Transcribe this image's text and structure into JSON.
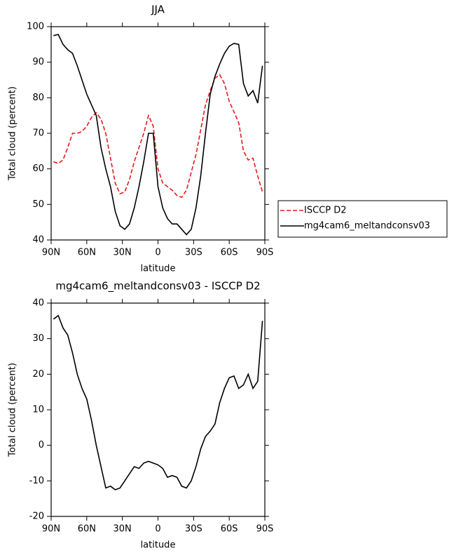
{
  "chart_data": [
    {
      "type": "line",
      "title": "JJA",
      "xlabel": "latitude",
      "ylabel": "Total cloud (percent)",
      "x": [
        88,
        84,
        80,
        76,
        72,
        68,
        64,
        60,
        56,
        52,
        48,
        44,
        40,
        36,
        32,
        28,
        24,
        20,
        16,
        12,
        8,
        4,
        0,
        -4,
        -8,
        -12,
        -16,
        -20,
        -24,
        -28,
        -32,
        -36,
        -40,
        -44,
        -48,
        -52,
        -56,
        -60,
        -64,
        -68,
        -72,
        -76,
        -80,
        -84,
        -88
      ],
      "xlim": [
        90,
        -90
      ],
      "xticks": [
        {
          "value": 90,
          "label": "90N"
        },
        {
          "value": 60,
          "label": "60N"
        },
        {
          "value": 30,
          "label": "30N"
        },
        0,
        {
          "value": -30,
          "label": "30S"
        },
        {
          "value": -60,
          "label": "60S"
        },
        {
          "value": -90,
          "label": "90S"
        }
      ],
      "ylim": [
        40,
        100
      ],
      "yticks": [
        40,
        50,
        60,
        70,
        80,
        90,
        100
      ],
      "legend": "right",
      "series": [
        {
          "name": "ISCCP D2",
          "color": "#e41a1c",
          "dashed": true,
          "values": [
            62,
            61.5,
            62.5,
            66,
            70,
            70,
            70.5,
            72,
            74.5,
            75.8,
            74,
            70,
            63,
            56,
            53,
            53.5,
            57,
            62,
            66,
            70,
            75,
            72,
            60,
            56,
            55,
            54,
            52.5,
            52,
            54,
            59,
            64,
            71,
            78,
            82,
            85.5,
            86.5,
            84,
            79,
            76,
            73,
            65,
            62.5,
            63,
            58,
            53.5
          ]
        },
        {
          "name": "mg4cam6_meltandconsv03",
          "color": "#000000",
          "dashed": false,
          "values": [
            97.5,
            97.8,
            95,
            93.5,
            92.5,
            89,
            85,
            81,
            78,
            75,
            66,
            60,
            55,
            48,
            44,
            43,
            44.5,
            49,
            55,
            62,
            70,
            70,
            55,
            49,
            46,
            44.5,
            44.5,
            43,
            41.5,
            43,
            49,
            58,
            70,
            81,
            86,
            89.5,
            92.5,
            94.5,
            95.3,
            95,
            84,
            80.5,
            82,
            78.5,
            89
          ]
        }
      ]
    },
    {
      "type": "line",
      "title": "mg4cam6_meltandconsv03 - ISCCP D2",
      "xlabel": "latitude",
      "ylabel": "Total cloud (percent)",
      "x": [
        88,
        84,
        80,
        76,
        72,
        68,
        64,
        60,
        56,
        52,
        48,
        44,
        40,
        36,
        32,
        28,
        24,
        20,
        16,
        12,
        8,
        4,
        0,
        -4,
        -8,
        -12,
        -16,
        -20,
        -24,
        -28,
        -32,
        -36,
        -40,
        -44,
        -48,
        -52,
        -56,
        -60,
        -64,
        -68,
        -72,
        -76,
        -80,
        -84,
        -88
      ],
      "xlim": [
        90,
        -90
      ],
      "xticks": [
        {
          "value": 90,
          "label": "90N"
        },
        {
          "value": 60,
          "label": "60N"
        },
        {
          "value": 30,
          "label": "30N"
        },
        0,
        {
          "value": -30,
          "label": "30S"
        },
        {
          "value": -60,
          "label": "60S"
        },
        {
          "value": -90,
          "label": "90S"
        }
      ],
      "ylim": [
        -20,
        40
      ],
      "yticks": [
        -20,
        -10,
        0,
        10,
        20,
        30,
        40
      ],
      "series": [
        {
          "color": "#000000",
          "dashed": false,
          "values": [
            35.5,
            36.5,
            33,
            31,
            26,
            20,
            16,
            13,
            7,
            0,
            -6,
            -12,
            -11.5,
            -12.5,
            -12,
            -10,
            -8,
            -6,
            -6.5,
            -5,
            -4.5,
            -5,
            -5.5,
            -6.5,
            -9,
            -8.5,
            -9,
            -11.5,
            -12,
            -10,
            -6,
            -1,
            2.5,
            4,
            6,
            12,
            16,
            19,
            19.5,
            16,
            17,
            20,
            16,
            18,
            35
          ]
        }
      ]
    }
  ]
}
